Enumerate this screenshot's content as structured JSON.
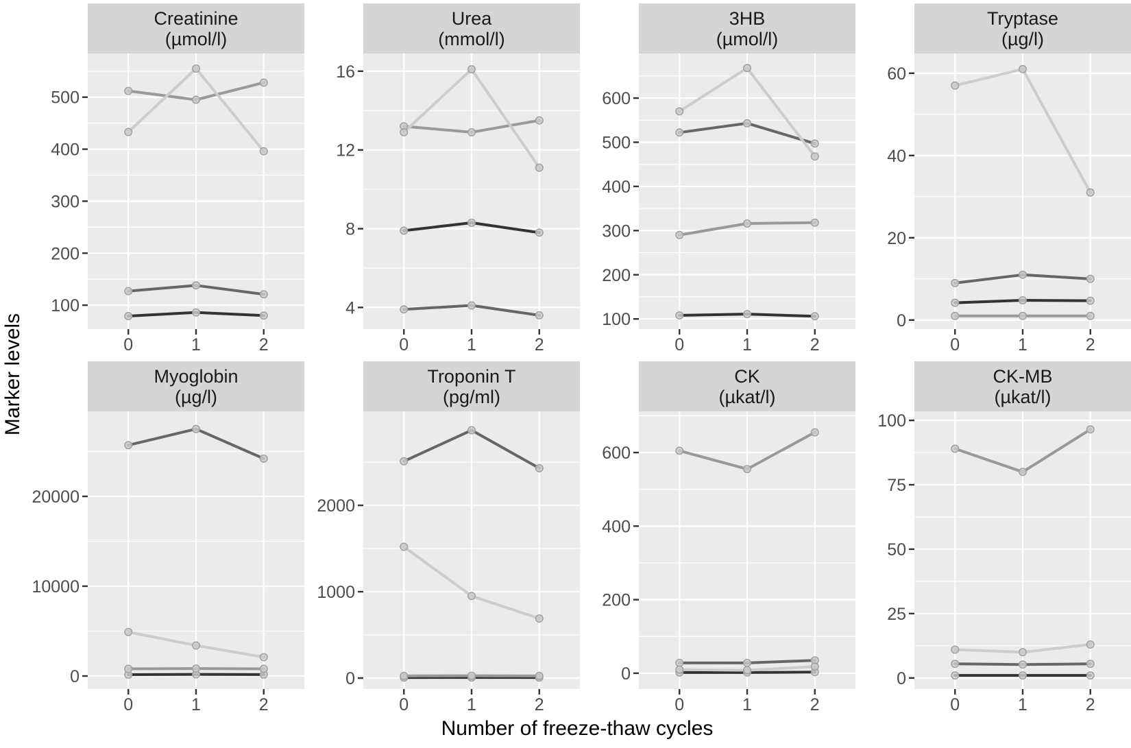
{
  "figure": {
    "ylabel": "Marker levels",
    "xlabel": "Number of freeze-thaw cycles",
    "colors": {
      "panel_bg": "#EBEBEB",
      "strip_bg": "#D5D5D5",
      "grid": "#FFFFFF",
      "tick_text": "#4D4D4D",
      "strip_text": "#1A1A1A",
      "tick_mark": "#333333",
      "point_fill": "#C9C9C9",
      "point_stroke": "#9E9E9E"
    },
    "series_shades": [
      "#333333",
      "#666666",
      "#999999",
      "#CCCCCC"
    ]
  },
  "chart_data": [
    {
      "type": "line",
      "name": "Creatinine",
      "unit": "(µmol/l)",
      "x": [
        0,
        1,
        2
      ],
      "ylim": [
        54,
        584
      ],
      "yticks": [
        100,
        200,
        300,
        400,
        500
      ],
      "yticks_minor": [
        150,
        250,
        350,
        450,
        550
      ],
      "series": [
        {
          "name": "series-darkest",
          "color": "#333333",
          "values": [
            79,
            86,
            80
          ]
        },
        {
          "name": "series-dark-grey",
          "color": "#666666",
          "values": [
            127,
            138,
            121
          ]
        },
        {
          "name": "series-mid-grey",
          "color": "#999999",
          "values": [
            512,
            495,
            528
          ]
        },
        {
          "name": "series-light-grey",
          "color": "#CCCCCC",
          "values": [
            433,
            555,
            396
          ]
        }
      ]
    },
    {
      "type": "line",
      "name": "Urea",
      "unit": "(mmol/l)",
      "x": [
        0,
        1,
        2
      ],
      "ylim": [
        2.9,
        16.9
      ],
      "yticks": [
        4,
        8,
        12,
        16
      ],
      "yticks_minor": [
        6,
        10,
        14
      ],
      "series": [
        {
          "name": "series-darkest",
          "color": "#333333",
          "values": [
            7.9,
            8.3,
            7.8
          ]
        },
        {
          "name": "series-dark-grey",
          "color": "#666666",
          "values": [
            3.9,
            4.1,
            3.6
          ]
        },
        {
          "name": "series-mid-grey",
          "color": "#999999",
          "values": [
            13.2,
            12.9,
            13.5
          ]
        },
        {
          "name": "series-light-grey",
          "color": "#CCCCCC",
          "values": [
            12.9,
            16.1,
            11.1
          ]
        }
      ]
    },
    {
      "type": "line",
      "name": "3HB",
      "unit": "(µmol/l)",
      "x": [
        0,
        1,
        2
      ],
      "ylim": [
        77,
        701
      ],
      "yticks": [
        100,
        200,
        300,
        400,
        500,
        600
      ],
      "yticks_minor": [
        150,
        250,
        350,
        450,
        550,
        650
      ],
      "series": [
        {
          "name": "series-darkest",
          "color": "#333333",
          "values": [
            108,
            111,
            106
          ]
        },
        {
          "name": "series-dark-grey",
          "color": "#666666",
          "values": [
            522,
            543,
            497
          ]
        },
        {
          "name": "series-mid-grey",
          "color": "#999999",
          "values": [
            290,
            316,
            318
          ]
        },
        {
          "name": "series-light-grey",
          "color": "#CCCCCC",
          "values": [
            570,
            668,
            468
          ]
        }
      ]
    },
    {
      "type": "line",
      "name": "Tryptase",
      "unit": "(µg/l)",
      "x": [
        0,
        1,
        2
      ],
      "ylim": [
        -2.2,
        64.8
      ],
      "yticks": [
        0,
        20,
        40,
        60
      ],
      "yticks_minor": [
        10,
        30,
        50
      ],
      "series": [
        {
          "name": "series-darkest",
          "color": "#333333",
          "values": [
            4.2,
            4.8,
            4.7
          ]
        },
        {
          "name": "series-dark-grey",
          "color": "#666666",
          "values": [
            9,
            11,
            10
          ]
        },
        {
          "name": "series-mid-grey",
          "color": "#999999",
          "values": [
            1,
            1,
            1
          ]
        },
        {
          "name": "series-light-grey",
          "color": "#CCCCCC",
          "values": [
            57,
            61,
            31
          ]
        }
      ]
    },
    {
      "type": "line",
      "name": "Myoglobin",
      "unit": "(µg/l)",
      "x": [
        0,
        1,
        2
      ],
      "ylim": [
        -1450,
        29460
      ],
      "yticks": [
        0,
        10000,
        20000
      ],
      "yticks_minor": [
        5000,
        15000,
        25000
      ],
      "series": [
        {
          "name": "series-darkest",
          "color": "#333333",
          "values": [
            150,
            180,
            160
          ]
        },
        {
          "name": "series-dark-grey",
          "color": "#666666",
          "values": [
            25700,
            27500,
            24200
          ]
        },
        {
          "name": "series-mid-grey",
          "color": "#999999",
          "values": [
            800,
            830,
            800
          ]
        },
        {
          "name": "series-light-grey",
          "color": "#CCCCCC",
          "values": [
            4900,
            3400,
            2100
          ]
        }
      ]
    },
    {
      "type": "line",
      "name": "Troponin T",
      "unit": "(pg/ml)",
      "x": [
        0,
        1,
        2
      ],
      "ylim": [
        -127,
        3088
      ],
      "yticks": [
        0,
        1000,
        2000
      ],
      "yticks_minor": [
        500,
        1500,
        2500
      ],
      "series": [
        {
          "name": "series-darkest",
          "color": "#333333",
          "values": [
            6,
            7,
            6
          ]
        },
        {
          "name": "series-dark-grey",
          "color": "#666666",
          "values": [
            2510,
            2870,
            2430
          ]
        },
        {
          "name": "series-mid-grey",
          "color": "#999999",
          "values": [
            25,
            27,
            25
          ]
        },
        {
          "name": "series-light-grey",
          "color": "#CCCCCC",
          "values": [
            1520,
            950,
            690
          ]
        }
      ]
    },
    {
      "type": "line",
      "name": "CK",
      "unit": "(µkat/l)",
      "x": [
        0,
        1,
        2
      ],
      "ylim": [
        -43,
        712
      ],
      "yticks": [
        0,
        200,
        400,
        600
      ],
      "yticks_minor": [
        100,
        300,
        500,
        700
      ],
      "series": [
        {
          "name": "series-darkest",
          "color": "#333333",
          "values": [
            2,
            2,
            3
          ]
        },
        {
          "name": "series-dark-grey",
          "color": "#666666",
          "values": [
            28,
            28,
            35
          ]
        },
        {
          "name": "series-mid-grey",
          "color": "#999999",
          "values": [
            605,
            555,
            655
          ]
        },
        {
          "name": "series-light-grey",
          "color": "#CCCCCC",
          "values": [
            10,
            8,
            18
          ]
        }
      ]
    },
    {
      "type": "line",
      "name": "CK-MB",
      "unit": "(µkat/l)",
      "x": [
        0,
        1,
        2
      ],
      "ylim": [
        -4.3,
        103.5
      ],
      "yticks": [
        0,
        25,
        50,
        75,
        100
      ],
      "yticks_minor": [
        12.5,
        37.5,
        62.5,
        87.5
      ],
      "series": [
        {
          "name": "series-darkest",
          "color": "#333333",
          "values": [
            1,
            1,
            1
          ]
        },
        {
          "name": "series-dark-grey",
          "color": "#666666",
          "values": [
            5.5,
            5.2,
            5.5
          ]
        },
        {
          "name": "series-mid-grey",
          "color": "#999999",
          "values": [
            89,
            80,
            96.5
          ]
        },
        {
          "name": "series-light-grey",
          "color": "#CCCCCC",
          "values": [
            11,
            10,
            13
          ]
        }
      ]
    }
  ]
}
